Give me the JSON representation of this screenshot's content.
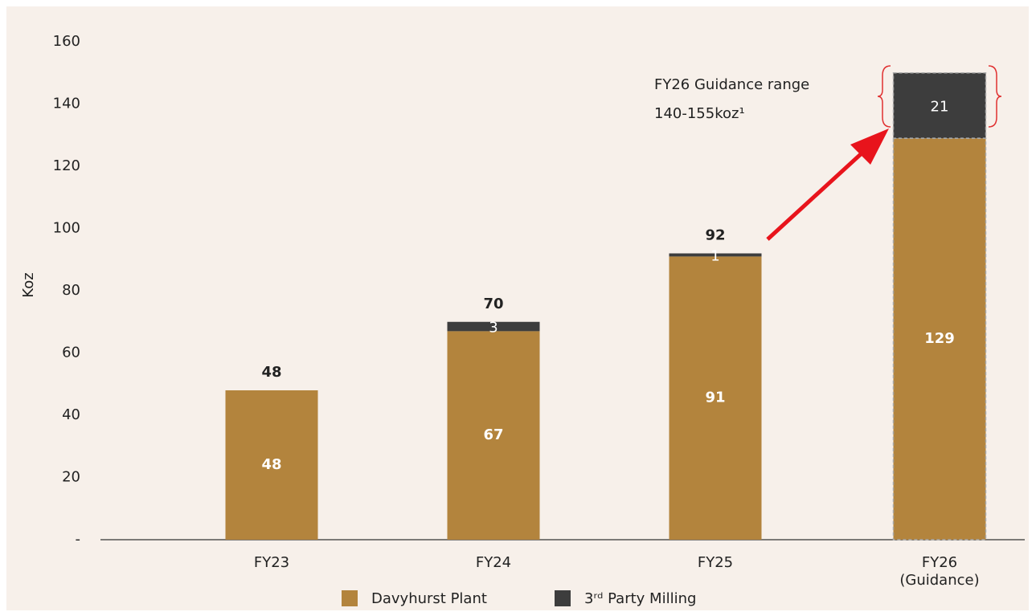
{
  "chart_data": {
    "type": "bar",
    "stacked": true,
    "y_label": "Koz",
    "categories": [
      "FY23",
      "FY24",
      "FY25",
      "FY26 (Guidance)"
    ],
    "series": [
      {
        "name": "Davyhurst Plant",
        "color": "#b3843d",
        "values": [
          48,
          67,
          91,
          129
        ]
      },
      {
        "name": "3ʳᵈ Party Milling",
        "color": "#3d3d3d",
        "values": [
          null,
          3,
          1,
          21
        ]
      }
    ],
    "totals": [
      48,
      70,
      92,
      null
    ],
    "ylim": [
      0,
      160
    ],
    "yticks": [
      {
        "value": 0,
        "label": "-"
      },
      20,
      40,
      60,
      80,
      100,
      120,
      140,
      160
    ],
    "annotation": [
      "FY26 Guidance range",
      "140-155koz¹"
    ],
    "grid": false
  }
}
